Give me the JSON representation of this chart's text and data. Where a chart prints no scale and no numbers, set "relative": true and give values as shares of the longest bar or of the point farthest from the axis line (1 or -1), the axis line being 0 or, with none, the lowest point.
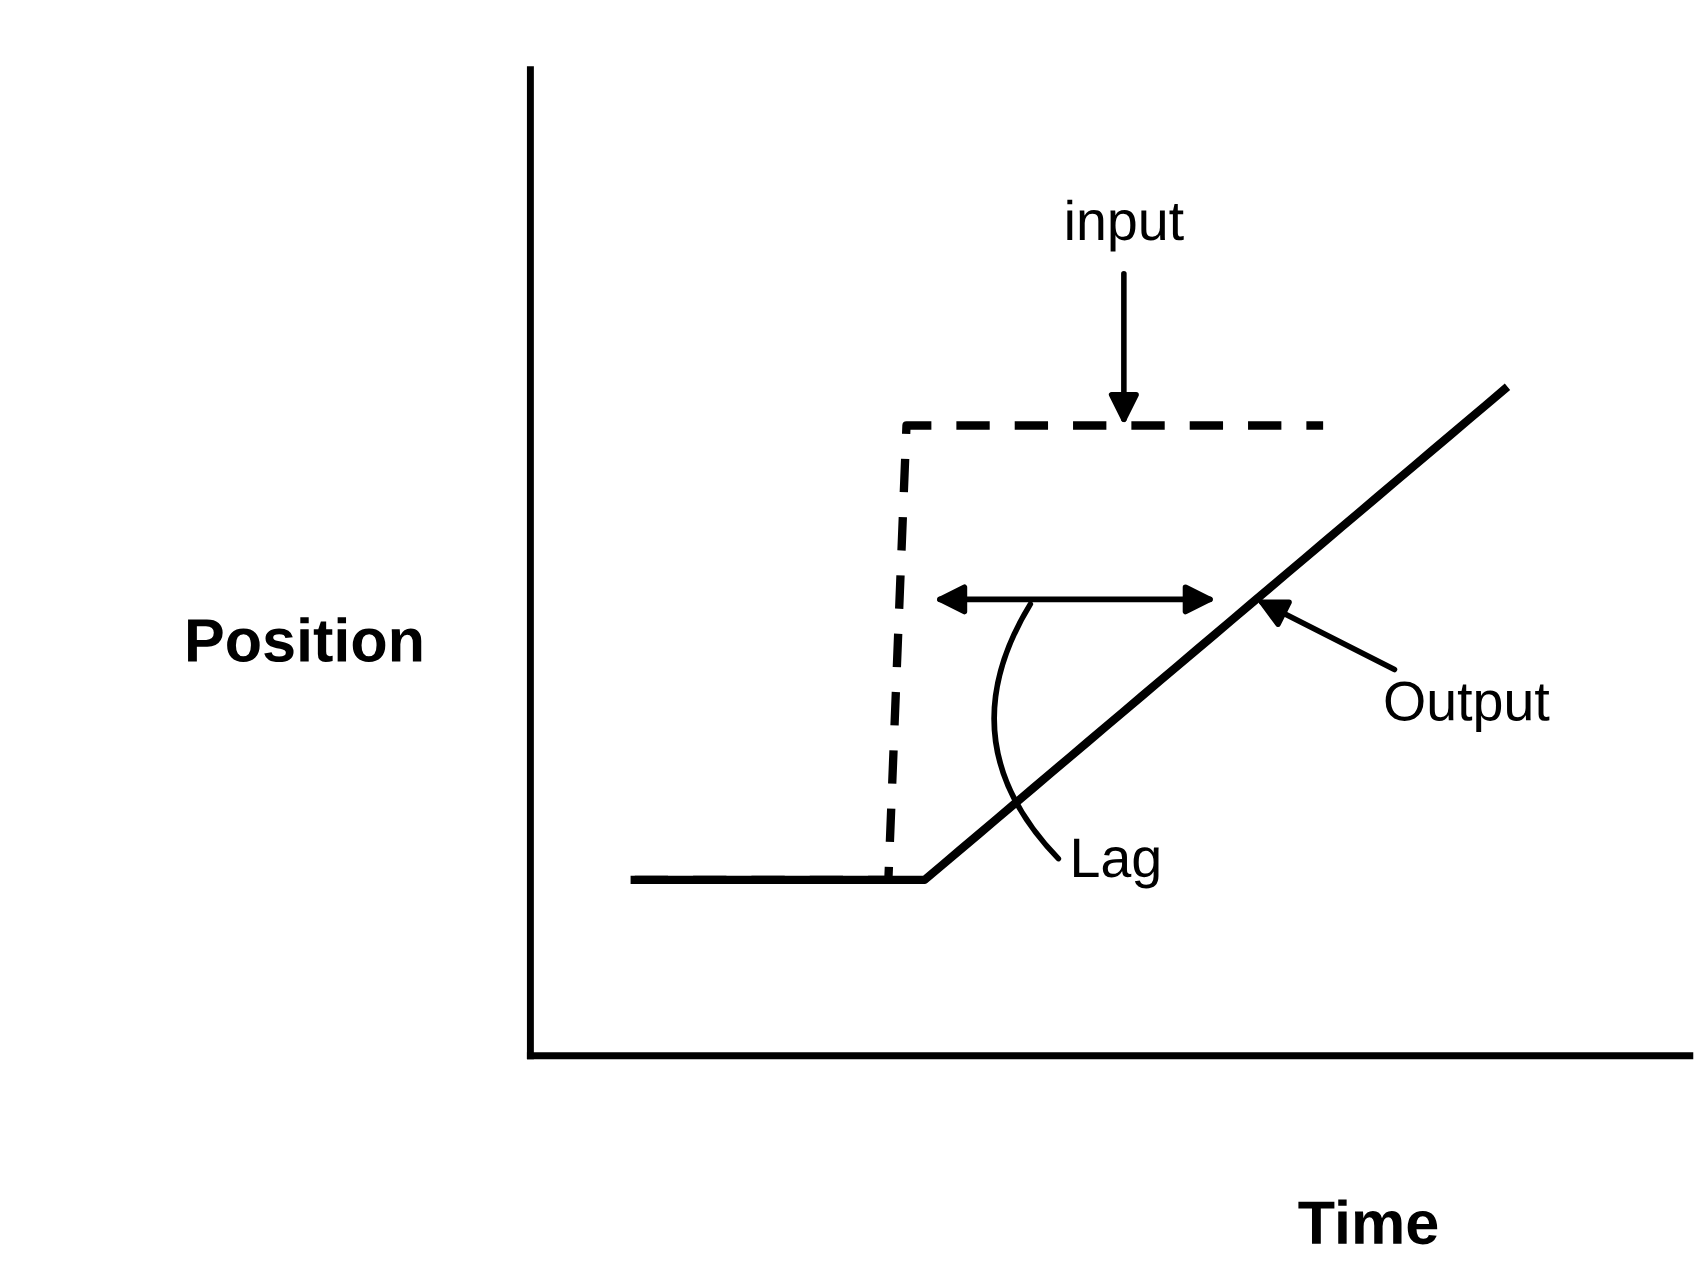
{
  "chart_data": {
    "type": "line",
    "relative": true,
    "xlabel": "Time",
    "ylabel": "Position",
    "categories": [
      null,
      null,
      null,
      null,
      null,
      null,
      null,
      null,
      null,
      null,
      null,
      null,
      null,
      null,
      null,
      null,
      null,
      null,
      null,
      null,
      null,
      null,
      null,
      null,
      null,
      null,
      null,
      null,
      null,
      null,
      null,
      null,
      null,
      null,
      null,
      null,
      null,
      null,
      null,
      null,
      null,
      null,
      null,
      null,
      null,
      null,
      null,
      null,
      null
    ],
    "series": [
      {
        "color": "#000000",
        "line_style": "dashed",
        "values": [
          0.264,
          0.264,
          0.264,
          0.264,
          0.264,
          0.264,
          0.264,
          0.264,
          0.264,
          0.264,
          0.264,
          0.264,
          0.264,
          0.264,
          0.264,
          0.946,
          0.946,
          0.946,
          0.946,
          0.946,
          0.946,
          0.946,
          0.946,
          0.946,
          0.946,
          0.946,
          0.946,
          0.946,
          0.946,
          0.946,
          0.946,
          0.946,
          0.946,
          0.946,
          0.946,
          0.946,
          0.946,
          0.946,
          0.946,
          null,
          null,
          null,
          null,
          null,
          null,
          null,
          null,
          null,
          null
        ]
      },
      {
        "color": "#000000",
        "line_style": "solid",
        "values": [
          0.264,
          0.264,
          0.264,
          0.264,
          0.264,
          0.264,
          0.264,
          0.264,
          0.264,
          0.264,
          0.264,
          0.264,
          0.264,
          0.264,
          0.264,
          0.264,
          0.264,
          0.287,
          0.31,
          0.333,
          0.356,
          0.379,
          0.402,
          0.425,
          0.448,
          0.471,
          0.494,
          0.517,
          0.54,
          0.563,
          0.586,
          0.609,
          0.632,
          0.655,
          0.678,
          0.701,
          0.724,
          0.747,
          0.77,
          0.793,
          0.816,
          0.839,
          0.862,
          0.885,
          0.908,
          0.931,
          0.954,
          0.977,
          1.0
        ]
      }
    ],
    "annotations": [
      {
        "text": "input",
        "y": 0.946
      },
      "Output",
      "Lag"
    ]
  }
}
